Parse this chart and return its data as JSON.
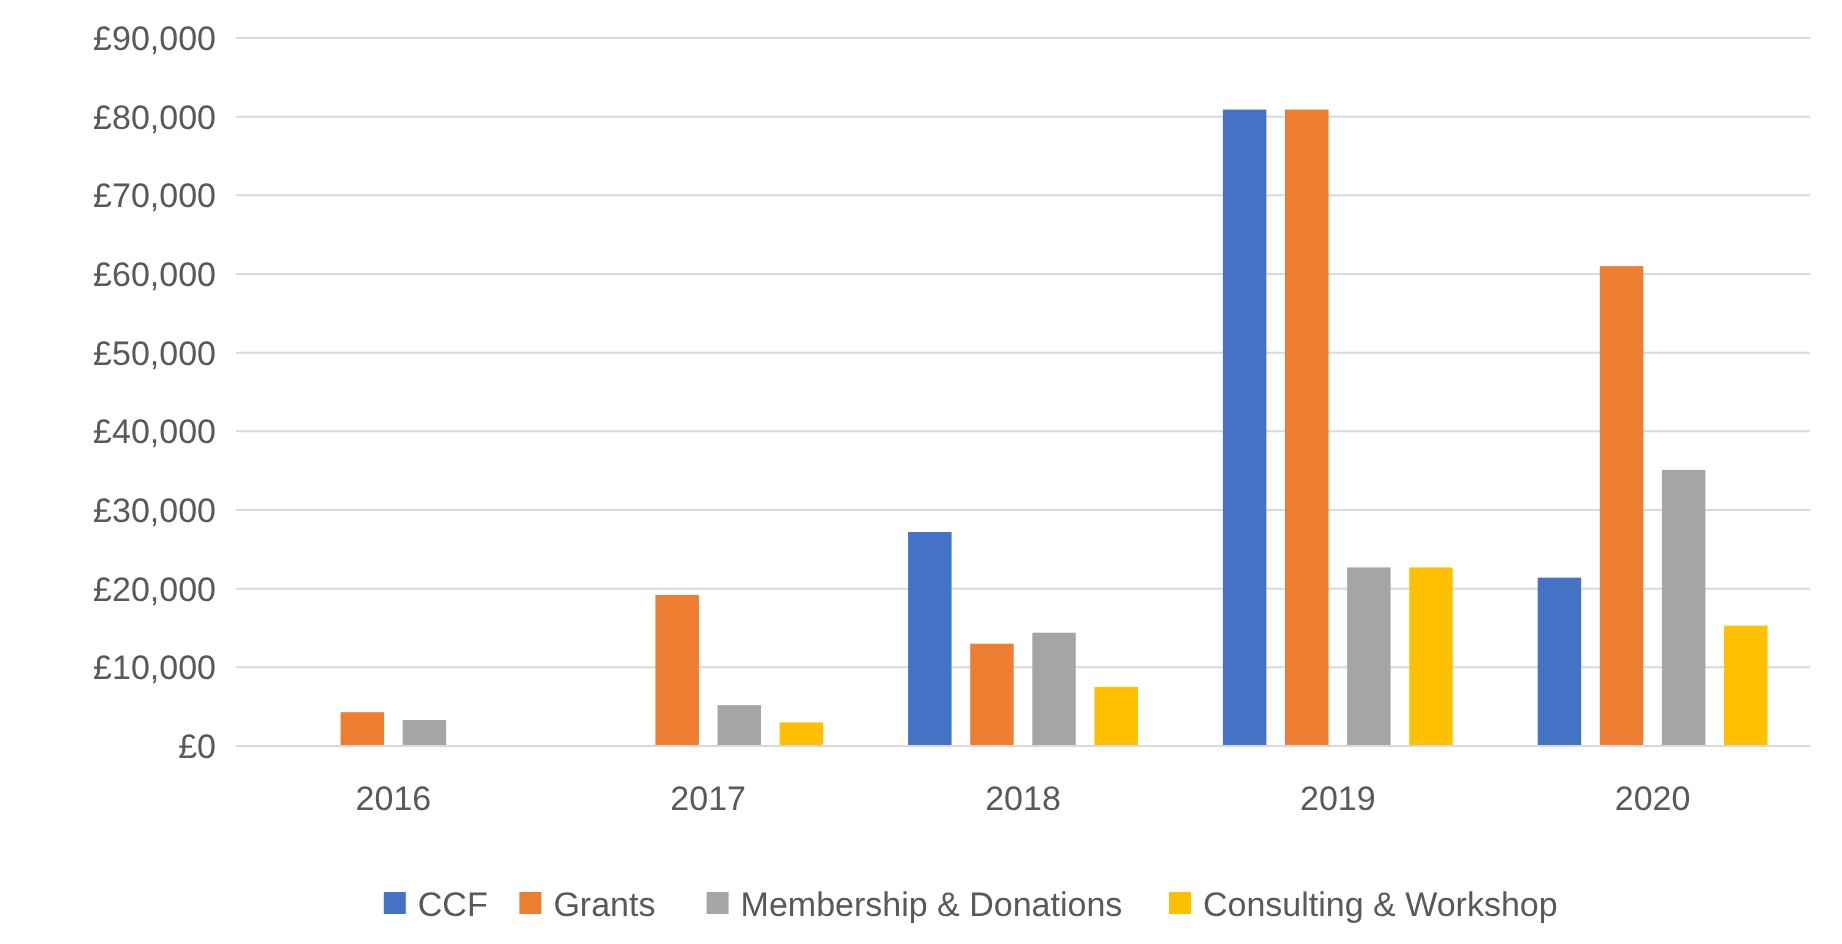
{
  "chart_data": {
    "type": "bar",
    "categories": [
      "2016",
      "2017",
      "2018",
      "2019",
      "2020"
    ],
    "series": [
      {
        "name": "CCF",
        "color": "#4472c4",
        "values": [
          0,
          0,
          27200,
          80900,
          21400
        ]
      },
      {
        "name": "Grants",
        "color": "#ed7d31",
        "values": [
          4300,
          19200,
          13000,
          80900,
          61000
        ]
      },
      {
        "name": "Membership & Donations",
        "color": "#a5a5a5",
        "values": [
          3300,
          5200,
          14400,
          22700,
          35100
        ]
      },
      {
        "name": "Consulting & Workshop",
        "color": "#ffc000",
        "values": [
          0,
          3000,
          7500,
          22700,
          15300
        ]
      }
    ],
    "ylim": [
      0,
      90000
    ],
    "yticks": [
      {
        "value": 0,
        "label": "£0"
      },
      {
        "value": 10000,
        "label": "£10,000"
      },
      {
        "value": 20000,
        "label": "£20,000"
      },
      {
        "value": 30000,
        "label": "£30,000"
      },
      {
        "value": 40000,
        "label": "£40,000"
      },
      {
        "value": 50000,
        "label": "£50,000"
      },
      {
        "value": 60000,
        "label": "£60,000"
      },
      {
        "value": 70000,
        "label": "£70,000"
      },
      {
        "value": 80000,
        "label": "£80,000"
      },
      {
        "value": 90000,
        "label": "£90,000"
      }
    ],
    "grid": "y",
    "legend": "bottom"
  }
}
